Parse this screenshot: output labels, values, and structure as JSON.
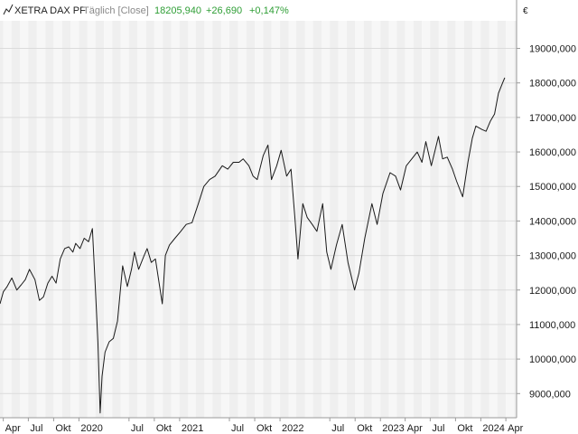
{
  "header": {
    "instrument": "XETRA DAX PF",
    "interval": "Täglich [Close]",
    "last": "18205,940",
    "change_abs": "+26,690",
    "change_pct": "+0,147%"
  },
  "colors": {
    "up": "#2e9e35",
    "line": "#1a1a1a",
    "band_light": "#f7f7f7",
    "band_dark": "#efefef",
    "grid": "#dcdcdc",
    "axis": "#9a9a9a"
  },
  "chart_data": {
    "type": "line",
    "title": "",
    "y_unit": "€",
    "grid": true,
    "ylim": [
      8300,
      19800
    ],
    "xlim": [
      "2019-03-20",
      "2024-05-10"
    ],
    "y_ticks": [
      {
        "value": 9000,
        "label": "9000,000"
      },
      {
        "value": 10000,
        "label": "10000,000"
      },
      {
        "value": 11000,
        "label": "11000,000"
      },
      {
        "value": 12000,
        "label": "12000,000"
      },
      {
        "value": 13000,
        "label": "13000,000"
      },
      {
        "value": 14000,
        "label": "14000,000"
      },
      {
        "value": 15000,
        "label": "15000,000"
      },
      {
        "value": 16000,
        "label": "16000,000"
      },
      {
        "value": 17000,
        "label": "17000,000"
      },
      {
        "value": 18000,
        "label": "18000,000"
      },
      {
        "value": 19000,
        "label": "19000,000"
      }
    ],
    "x_ticks": [
      {
        "date": "2019-04-01",
        "label": "Apr"
      },
      {
        "date": "2019-07-01",
        "label": "Jul"
      },
      {
        "date": "2019-10-01",
        "label": "Okt"
      },
      {
        "date": "2020-01-01",
        "label": "2020"
      },
      {
        "date": "2020-07-01",
        "label": "Jul"
      },
      {
        "date": "2020-10-01",
        "label": "Okt"
      },
      {
        "date": "2021-01-01",
        "label": "2021"
      },
      {
        "date": "2021-07-01",
        "label": "Jul"
      },
      {
        "date": "2021-10-01",
        "label": "Okt"
      },
      {
        "date": "2022-01-01",
        "label": "2022"
      },
      {
        "date": "2022-07-01",
        "label": "Jul"
      },
      {
        "date": "2022-10-01",
        "label": "Okt"
      },
      {
        "date": "2023-01-01",
        "label": "2023"
      },
      {
        "date": "2023-04-01",
        "label": "Apr"
      },
      {
        "date": "2023-07-01",
        "label": "Jul"
      },
      {
        "date": "2023-10-01",
        "label": "Okt"
      },
      {
        "date": "2024-01-01",
        "label": "2024"
      },
      {
        "date": "2024-04-01",
        "label": "Apr"
      }
    ],
    "series": [
      {
        "points": [
          [
            "2019-03-20",
            11600
          ],
          [
            "2019-04-01",
            11950
          ],
          [
            "2019-04-15",
            12100
          ],
          [
            "2019-05-02",
            12350
          ],
          [
            "2019-05-20",
            12000
          ],
          [
            "2019-06-05",
            12150
          ],
          [
            "2019-06-20",
            12300
          ],
          [
            "2019-07-05",
            12600
          ],
          [
            "2019-07-25",
            12300
          ],
          [
            "2019-08-10",
            11700
          ],
          [
            "2019-08-25",
            11800
          ],
          [
            "2019-09-10",
            12200
          ],
          [
            "2019-09-25",
            12400
          ],
          [
            "2019-10-10",
            12200
          ],
          [
            "2019-10-25",
            12900
          ],
          [
            "2019-11-10",
            13200
          ],
          [
            "2019-11-25",
            13250
          ],
          [
            "2019-12-10",
            13100
          ],
          [
            "2019-12-20",
            13350
          ],
          [
            "2020-01-05",
            13200
          ],
          [
            "2020-01-20",
            13500
          ],
          [
            "2020-02-05",
            13400
          ],
          [
            "2020-02-19",
            13780
          ],
          [
            "2020-03-01",
            12000
          ],
          [
            "2020-03-10",
            10500
          ],
          [
            "2020-03-18",
            8440
          ],
          [
            "2020-03-25",
            9500
          ],
          [
            "2020-04-05",
            10200
          ],
          [
            "2020-04-20",
            10500
          ],
          [
            "2020-05-05",
            10600
          ],
          [
            "2020-05-20",
            11100
          ],
          [
            "2020-06-08",
            12700
          ],
          [
            "2020-06-25",
            12100
          ],
          [
            "2020-07-10",
            12600
          ],
          [
            "2020-07-21",
            13100
          ],
          [
            "2020-08-05",
            12600
          ],
          [
            "2020-08-25",
            13000
          ],
          [
            "2020-09-05",
            13200
          ],
          [
            "2020-09-20",
            12800
          ],
          [
            "2020-10-05",
            12900
          ],
          [
            "2020-10-30",
            11600
          ],
          [
            "2020-11-10",
            13000
          ],
          [
            "2020-11-25",
            13300
          ],
          [
            "2020-12-15",
            13500
          ],
          [
            "2021-01-05",
            13700
          ],
          [
            "2021-01-25",
            13900
          ],
          [
            "2021-02-15",
            13950
          ],
          [
            "2021-03-10",
            14500
          ],
          [
            "2021-03-30",
            15000
          ],
          [
            "2021-04-20",
            15200
          ],
          [
            "2021-05-10",
            15300
          ],
          [
            "2021-06-05",
            15600
          ],
          [
            "2021-06-25",
            15500
          ],
          [
            "2021-07-15",
            15700
          ],
          [
            "2021-08-05",
            15700
          ],
          [
            "2021-08-20",
            15800
          ],
          [
            "2021-09-10",
            15600
          ],
          [
            "2021-09-25",
            15300
          ],
          [
            "2021-10-10",
            15200
          ],
          [
            "2021-11-01",
            15900
          ],
          [
            "2021-11-18",
            16200
          ],
          [
            "2021-12-01",
            15200
          ],
          [
            "2021-12-20",
            15600
          ],
          [
            "2022-01-05",
            16050
          ],
          [
            "2022-01-25",
            15300
          ],
          [
            "2022-02-10",
            15500
          ],
          [
            "2022-02-24",
            14100
          ],
          [
            "2022-03-07",
            12900
          ],
          [
            "2022-03-25",
            14500
          ],
          [
            "2022-04-10",
            14100
          ],
          [
            "2022-04-28",
            13900
          ],
          [
            "2022-05-15",
            13700
          ],
          [
            "2022-06-05",
            14500
          ],
          [
            "2022-06-20",
            13100
          ],
          [
            "2022-07-05",
            12600
          ],
          [
            "2022-07-25",
            13300
          ],
          [
            "2022-08-15",
            13900
          ],
          [
            "2022-09-05",
            12800
          ],
          [
            "2022-09-29",
            12000
          ],
          [
            "2022-10-15",
            12500
          ],
          [
            "2022-11-05",
            13500
          ],
          [
            "2022-12-01",
            14500
          ],
          [
            "2022-12-20",
            13900
          ],
          [
            "2023-01-10",
            14800
          ],
          [
            "2023-02-05",
            15400
          ],
          [
            "2023-02-25",
            15300
          ],
          [
            "2023-03-15",
            14900
          ],
          [
            "2023-04-05",
            15600
          ],
          [
            "2023-04-25",
            15800
          ],
          [
            "2023-05-15",
            16000
          ],
          [
            "2023-06-01",
            15700
          ],
          [
            "2023-06-15",
            16300
          ],
          [
            "2023-07-05",
            15600
          ],
          [
            "2023-07-31",
            16450
          ],
          [
            "2023-08-15",
            15800
          ],
          [
            "2023-09-01",
            15850
          ],
          [
            "2023-09-20",
            15500
          ],
          [
            "2023-10-05",
            15150
          ],
          [
            "2023-10-27",
            14700
          ],
          [
            "2023-11-15",
            15700
          ],
          [
            "2023-12-01",
            16400
          ],
          [
            "2023-12-14",
            16750
          ],
          [
            "2024-01-05",
            16650
          ],
          [
            "2024-01-20",
            16600
          ],
          [
            "2024-02-05",
            16900
          ],
          [
            "2024-02-20",
            17100
          ],
          [
            "2024-03-05",
            17700
          ],
          [
            "2024-03-20",
            18000
          ],
          [
            "2024-03-28",
            18150
          ]
        ]
      }
    ]
  }
}
